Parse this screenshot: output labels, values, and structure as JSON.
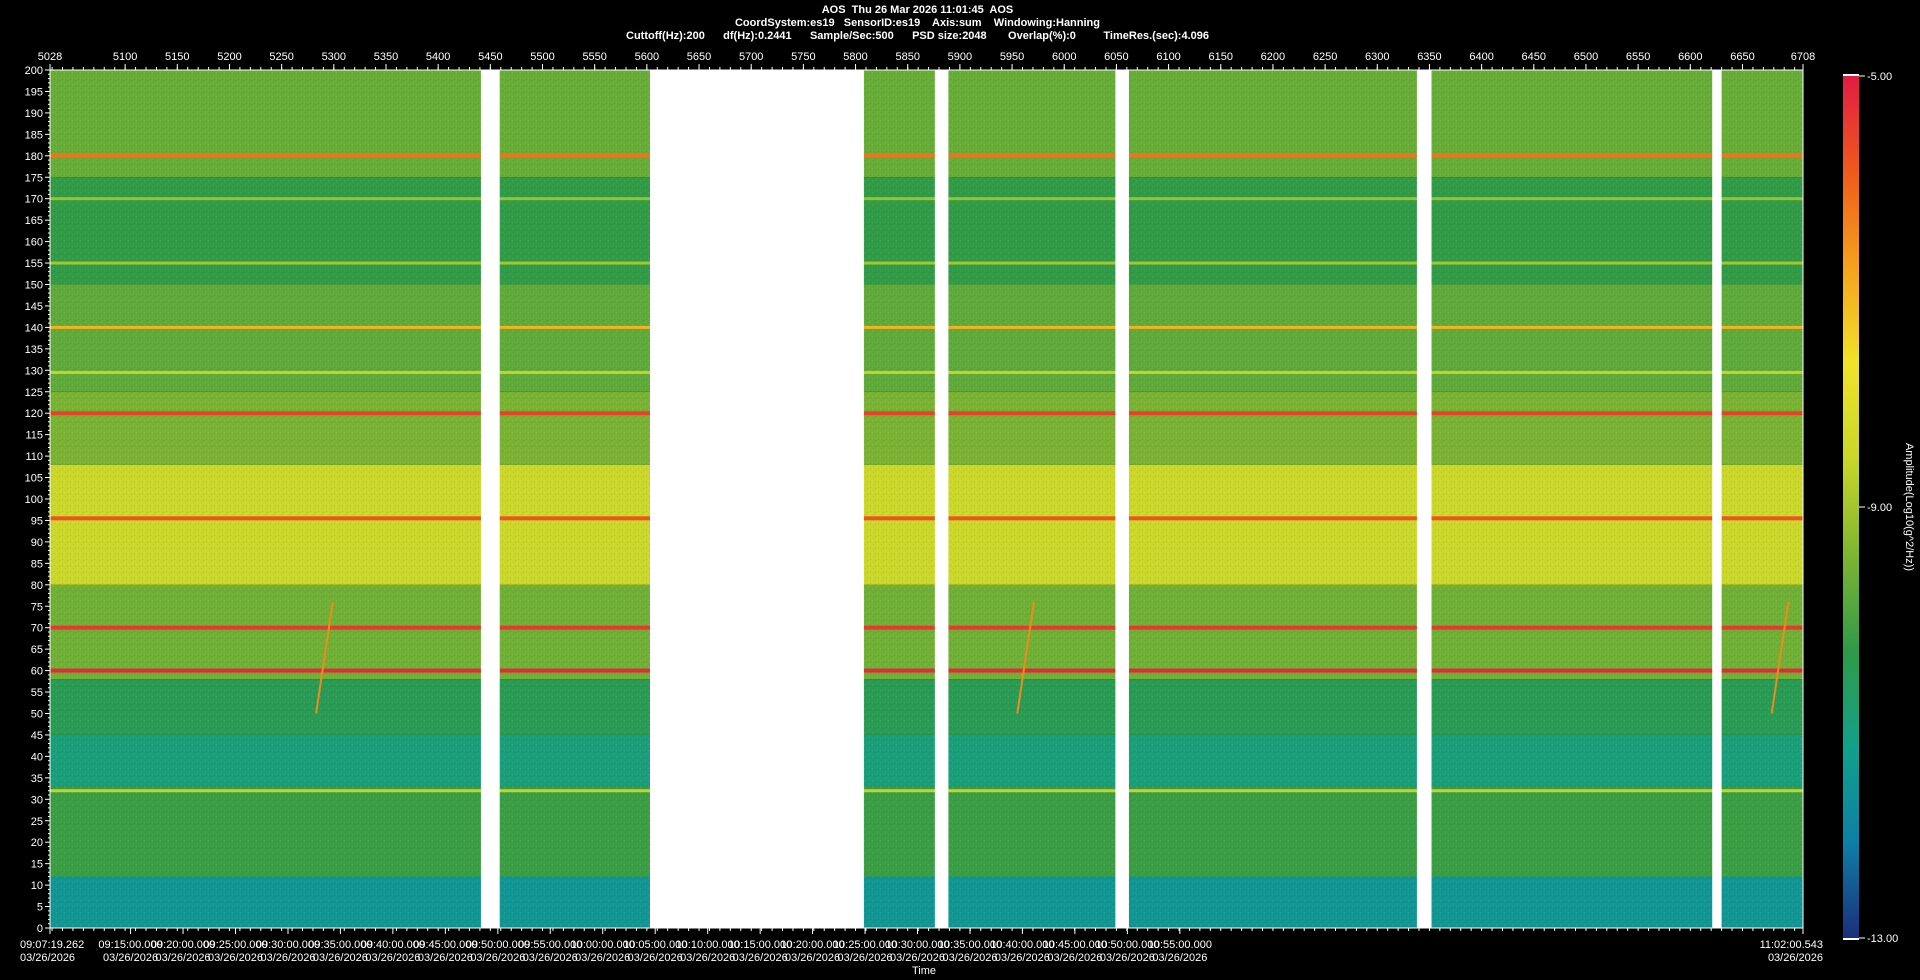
{
  "chart_data": {
    "type": "heatmap",
    "title": "AOS  Thu 26 Mar 2026 11:01:45  AOS",
    "subtitle_lines": [
      "CoordSystem:es19   SensorID:es19    Axis:sum    Windowing:Hanning",
      "Cuttoff(Hz):200      df(Hz):0.2441      Sample/Sec:500      PSD size:2048       Overlap(%):0         TimeRes.(sec):4.096"
    ],
    "xlabel": "Time",
    "ylabel": "",
    "ylim": [
      0,
      200
    ],
    "y_ticks": [
      0,
      5,
      10,
      15,
      20,
      25,
      30,
      35,
      40,
      45,
      50,
      55,
      60,
      65,
      70,
      75,
      80,
      85,
      90,
      95,
      100,
      105,
      110,
      115,
      120,
      125,
      130,
      135,
      140,
      145,
      150,
      155,
      160,
      165,
      170,
      175,
      180,
      185,
      190,
      195,
      200
    ],
    "top_axis_range": [
      5028,
      6708
    ],
    "top_ticks": [
      {
        "value": 5028,
        "label": "5028"
      },
      {
        "value": 5100,
        "label": "5100"
      },
      {
        "value": 5150,
        "label": "5150"
      },
      {
        "value": 5200,
        "label": "5200"
      },
      {
        "value": 5250,
        "label": "5250"
      },
      {
        "value": 5300,
        "label": "5300"
      },
      {
        "value": 5350,
        "label": "5350"
      },
      {
        "value": 5400,
        "label": "5400"
      },
      {
        "value": 5450,
        "label": "5450"
      },
      {
        "value": 5500,
        "label": "5500"
      },
      {
        "value": 5550,
        "label": "5550"
      },
      {
        "value": 5600,
        "label": "5600"
      },
      {
        "value": 5650,
        "label": "5650"
      },
      {
        "value": 5700,
        "label": "5700"
      },
      {
        "value": 5750,
        "label": "5750"
      },
      {
        "value": 5800,
        "label": "5800"
      },
      {
        "value": 5850,
        "label": "5850"
      },
      {
        "value": 5900,
        "label": "5900"
      },
      {
        "value": 5950,
        "label": "5950"
      },
      {
        "value": 6000,
        "label": "6000"
      },
      {
        "value": 6050,
        "label": "6050"
      },
      {
        "value": 6100,
        "label": "6100"
      },
      {
        "value": 6150,
        "label": "6150"
      },
      {
        "value": 6200,
        "label": "6200"
      },
      {
        "value": 6250,
        "label": "6250"
      },
      {
        "value": 6300,
        "label": "6300"
      },
      {
        "value": 6350,
        "label": "6350"
      },
      {
        "value": 6400,
        "label": "6400"
      },
      {
        "value": 6450,
        "label": "6450"
      },
      {
        "value": 6500,
        "label": "6500"
      },
      {
        "value": 6550,
        "label": "6550"
      },
      {
        "value": 6600,
        "label": "6600"
      },
      {
        "value": 6650,
        "label": "6650"
      },
      {
        "value": 6708,
        "label": "6708"
      }
    ],
    "x_ticks": [
      {
        "value": 5028,
        "time": "09:07:19.262",
        "date": "03/26/2026"
      },
      {
        "value": 5105.2,
        "time": "09:15:00.000",
        "date": "03/26/2026"
      },
      {
        "value": 5155.5,
        "time": "09:20:00.000",
        "date": "03/26/2026"
      },
      {
        "value": 5205.8,
        "time": "09:25:00.000",
        "date": "03/26/2026"
      },
      {
        "value": 5256.1,
        "time": "09:30:00.000",
        "date": "03/26/2026"
      },
      {
        "value": 5306.3,
        "time": "09:35:00.000",
        "date": "03/26/2026"
      },
      {
        "value": 5356.6,
        "time": "09:40:00.000",
        "date": "03/26/2026"
      },
      {
        "value": 5406.9,
        "time": "09:45:00.000",
        "date": "03/26/2026"
      },
      {
        "value": 5457.2,
        "time": "09:50:00.000",
        "date": "03/26/2026"
      },
      {
        "value": 5507.4,
        "time": "09:55:00.000",
        "date": "03/26/2026"
      },
      {
        "value": 5557.7,
        "time": "10:00:00.000",
        "date": "03/26/2026"
      },
      {
        "value": 5608.0,
        "time": "10:05:00.000",
        "date": "03/26/2026"
      },
      {
        "value": 5658.3,
        "time": "10:10:00.000",
        "date": "03/26/2026"
      },
      {
        "value": 5708.6,
        "time": "10:15:00.000",
        "date": "03/26/2026"
      },
      {
        "value": 5758.8,
        "time": "10:20:00.000",
        "date": "03/26/2026"
      },
      {
        "value": 5809.1,
        "time": "10:25:00.000",
        "date": "03/26/2026"
      },
      {
        "value": 5859.4,
        "time": "10:30:00.000",
        "date": "03/26/2026"
      },
      {
        "value": 5909.7,
        "time": "10:35:00.000",
        "date": "03/26/2026"
      },
      {
        "value": 5959.9,
        "time": "10:40:00.000",
        "date": "03/26/2026"
      },
      {
        "value": 6010.2,
        "time": "10:45:00.000",
        "date": "03/26/2026"
      },
      {
        "value": 6060.5,
        "time": "10:50:00.000",
        "date": "03/26/2026"
      },
      {
        "value": 6110.8,
        "time": "10:55:00.000",
        "date": "03/26/2026"
      },
      {
        "value": 6708,
        "time": "11:02:00.543",
        "date": "03/26/2026"
      }
    ],
    "data_gaps": [
      {
        "start": 5441,
        "end": 5459
      },
      {
        "start": 5603,
        "end": 5808
      },
      {
        "start": 5876,
        "end": 5889
      },
      {
        "start": 6049,
        "end": 6062
      },
      {
        "start": 6338,
        "end": 6352
      },
      {
        "start": 6621,
        "end": 6630
      }
    ],
    "colorbar": {
      "label": "Amplitude(Log10(g^2/Hz))",
      "range": [
        -13.0,
        -5.0
      ],
      "tick_labels": [
        "-5.00",
        "-9.00",
        "-13.00"
      ],
      "colormap": [
        "#1b2f7a",
        "#0e7fa6",
        "#13a08a",
        "#2f9a48",
        "#7fb532",
        "#c9d62a",
        "#f0e32a",
        "#f5a21e",
        "#ef5a1c",
        "#e01c44"
      ]
    },
    "amplitude_profile_by_frequency": [
      {
        "freq_hz": [
          0,
          12
        ],
        "amplitude": -11.5
      },
      {
        "freq_hz": [
          12,
          33
        ],
        "amplitude": -10.2
      },
      {
        "freq_hz": [
          33,
          45
        ],
        "amplitude": -11.0
      },
      {
        "freq_hz": [
          45,
          58
        ],
        "amplitude": -10.5
      },
      {
        "freq_hz": [
          58,
          80
        ],
        "amplitude": -9.6
      },
      {
        "freq_hz": [
          80,
          108
        ],
        "amplitude": -8.5
      },
      {
        "freq_hz": [
          108,
          125
        ],
        "amplitude": -9.5
      },
      {
        "freq_hz": [
          125,
          150
        ],
        "amplitude": -9.8
      },
      {
        "freq_hz": [
          150,
          175
        ],
        "amplitude": -10.3
      },
      {
        "freq_hz": [
          175,
          200
        ],
        "amplitude": -9.7
      }
    ],
    "tonal_lines": [
      {
        "freq_hz": 60,
        "amplitude": -5.2
      },
      {
        "freq_hz": 70,
        "amplitude": -5.4
      },
      {
        "freq_hz": 95.5,
        "amplitude": -5.8
      },
      {
        "freq_hz": 120,
        "amplitude": -5.5
      },
      {
        "freq_hz": 140,
        "amplitude": -7.0
      },
      {
        "freq_hz": 180,
        "amplitude": -6.2
      },
      {
        "freq_hz": 32,
        "amplitude": -8.6
      },
      {
        "freq_hz": 129.5,
        "amplitude": -8.6
      },
      {
        "freq_hz": 155,
        "amplitude": -9.0
      },
      {
        "freq_hz": 170,
        "amplitude": -9.1
      }
    ],
    "sweeps": [
      {
        "x_start": 5283,
        "x_end": 5299,
        "freq_start": 50,
        "freq_end": 76
      },
      {
        "x_start": 5955,
        "x_end": 5971,
        "freq_start": 50,
        "freq_end": 76
      },
      {
        "x_start": 6678,
        "x_end": 6694,
        "freq_start": 50,
        "freq_end": 76
      }
    ],
    "grid": false,
    "legend": "right (colorbar)"
  }
}
